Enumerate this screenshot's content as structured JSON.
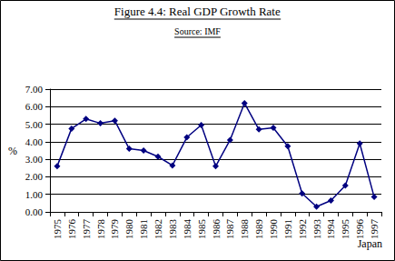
{
  "chart_data": {
    "type": "line",
    "title": "Figure 4.4: Real GDP Growth Rate",
    "subtitle": "Source: IMF",
    "ylabel": "%",
    "xlabel": "Japan",
    "categories": [
      "1975",
      "1976",
      "1977",
      "1978",
      "1979",
      "1980",
      "1981",
      "1982",
      "1983",
      "1984",
      "1985",
      "1986",
      "1987",
      "1988",
      "1989",
      "1990",
      "1991",
      "1992",
      "1993",
      "1994",
      "1995",
      "1996",
      "1997"
    ],
    "values": [
      2.6,
      4.75,
      5.3,
      5.05,
      5.2,
      3.6,
      3.5,
      3.15,
      2.65,
      4.25,
      4.95,
      2.6,
      4.1,
      6.2,
      4.7,
      4.8,
      3.75,
      1.05,
      0.3,
      0.65,
      1.5,
      3.9,
      0.85
    ],
    "color": "#000080",
    "marker": "diamond",
    "grid": true,
    "ylim": [
      0,
      7
    ],
    "yticks": [
      {
        "value": 0,
        "label": "0.00"
      },
      {
        "value": 1,
        "label": "1.00"
      },
      {
        "value": 2,
        "label": "2.00"
      },
      {
        "value": 3,
        "label": "3.00"
      },
      {
        "value": 4,
        "label": "4.00"
      },
      {
        "value": 5,
        "label": "5.00"
      },
      {
        "value": 6,
        "label": "6.00"
      },
      {
        "value": 7,
        "label": "7.00"
      }
    ]
  }
}
